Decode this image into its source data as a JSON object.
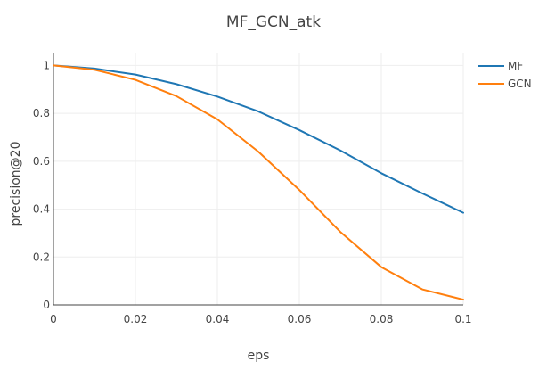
{
  "chart_data": {
    "type": "line",
    "title": "MF_GCN_atk",
    "xlabel": "eps",
    "ylabel": "precision@20",
    "xlim": [
      0,
      0.1
    ],
    "ylim": [
      0,
      1.05
    ],
    "xticks": [
      0,
      0.02,
      0.04,
      0.06,
      0.08,
      0.1
    ],
    "xtick_labels": [
      "0",
      "0.02",
      "0.04",
      "0.06",
      "0.08",
      "0.1"
    ],
    "yticks": [
      0,
      0.2,
      0.4,
      0.6,
      0.8,
      1
    ],
    "ytick_labels": [
      "0",
      "0.2",
      "0.4",
      "0.6",
      "0.8",
      "1"
    ],
    "grid": true,
    "legend_position": "top-right",
    "x": [
      0,
      0.01,
      0.02,
      0.03,
      0.04,
      0.05,
      0.06,
      0.07,
      0.08,
      0.09,
      0.1
    ],
    "series": [
      {
        "name": "MF",
        "color": "#1f77b4",
        "values": [
          1.0,
          0.987,
          0.962,
          0.922,
          0.87,
          0.808,
          0.73,
          0.645,
          0.55,
          0.466,
          0.385
        ]
      },
      {
        "name": "GCN",
        "color": "#ff7f0e",
        "values": [
          1.0,
          0.982,
          0.94,
          0.872,
          0.775,
          0.64,
          0.48,
          0.305,
          0.158,
          0.065,
          0.022
        ]
      }
    ]
  }
}
